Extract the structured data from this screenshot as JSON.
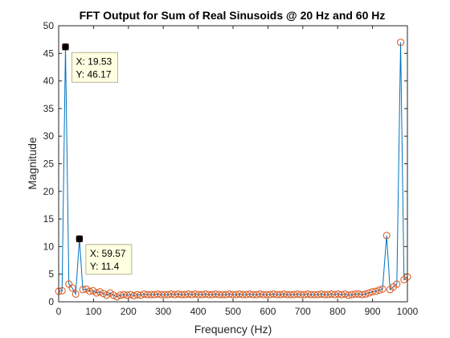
{
  "colors": {
    "line": "#0072BD",
    "marker": "#D95319",
    "datatip_bg": "#FFFFE1",
    "datatip_border": "#B4B496",
    "axes": "#262626"
  },
  "chart_data": {
    "type": "line",
    "title": "FFT Output for Sum of Real Sinusoids @ 20 Hz and 60 Hz",
    "xlabel": "Frequency (Hz)",
    "ylabel": "Magnitude",
    "xlim": [
      0,
      1000
    ],
    "ylim": [
      0,
      50
    ],
    "xticks": [
      "0",
      "100",
      "200",
      "300",
      "400",
      "500",
      "600",
      "700",
      "800",
      "900",
      "1000"
    ],
    "yticks": [
      "0",
      "5",
      "10",
      "15",
      "20",
      "25",
      "30",
      "35",
      "40",
      "45",
      "50"
    ],
    "grid": false,
    "marker": "circle",
    "series": [
      {
        "x": [
          0,
          9.77,
          19.53,
          29.3,
          39.06,
          48.83,
          59.57,
          69.34,
          79.1,
          88.87,
          98.63,
          108.4,
          118.2,
          127.9,
          137.7,
          147.5,
          157.2,
          167,
          176.8,
          186.5,
          196.3,
          206.1,
          215.8,
          225.6,
          235.4,
          245.1,
          254.9,
          264.6,
          274.4,
          284.2,
          293.9,
          303.7,
          313.5,
          323.2,
          333,
          342.8,
          352.5,
          362.3,
          372.1,
          381.8,
          391.6,
          401.4,
          411.1,
          420.9,
          430.7,
          440.4,
          450.2,
          459.9,
          469.7,
          479.5,
          489.3,
          499,
          508.8,
          518.6,
          528.3,
          538.1,
          547.9,
          557.6,
          567.4,
          577.1,
          586.9,
          596.7,
          606.4,
          616.2,
          626,
          635.7,
          645.5,
          655.3,
          665,
          674.8,
          684.6,
          694.3,
          704.1,
          713.9,
          723.6,
          733.4,
          743.2,
          752.9,
          762.7,
          772.5,
          782.2,
          792,
          801.8,
          811.5,
          821.3,
          831.1,
          840.8,
          850.6,
          860.4,
          870.1,
          879.9,
          889.6,
          899.4,
          909.2,
          918.9,
          928.7,
          940.4,
          950.2,
          959.9,
          969.7,
          980.5,
          990.2,
          1000
        ],
        "y": [
          1.9,
          2.0,
          46.17,
          3.2,
          2.5,
          1.4,
          11.4,
          2.2,
          2.3,
          1.9,
          2.0,
          1.6,
          1.8,
          1.5,
          1.2,
          1.6,
          1.2,
          0.9,
          1.2,
          1.3,
          1.2,
          1.3,
          1.1,
          1.3,
          1.2,
          1.4,
          1.3,
          1.3,
          1.3,
          1.4,
          1.3,
          1.3,
          1.3,
          1.4,
          1.3,
          1.4,
          1.3,
          1.3,
          1.4,
          1.3,
          1.4,
          1.3,
          1.3,
          1.4,
          1.3,
          1.3,
          1.4,
          1.3,
          1.3,
          1.3,
          1.4,
          1.3,
          1.3,
          1.4,
          1.3,
          1.3,
          1.4,
          1.3,
          1.3,
          1.4,
          1.3,
          1.3,
          1.3,
          1.4,
          1.3,
          1.3,
          1.4,
          1.3,
          1.3,
          1.3,
          1.4,
          1.3,
          1.3,
          1.4,
          1.3,
          1.3,
          1.3,
          1.4,
          1.3,
          1.3,
          1.4,
          1.3,
          1.4,
          1.3,
          1.4,
          1.2,
          1.3,
          1.4,
          1.4,
          1.3,
          1.4,
          1.6,
          1.8,
          1.9,
          2.1,
          2.3,
          12.0,
          2.2,
          2.7,
          3.2,
          47.0,
          4.0,
          4.5
        ]
      }
    ],
    "datatips": [
      {
        "x_text": "X: 19.53",
        "y_text": "Y: 46.17",
        "x": 19.53,
        "y": 46.17
      },
      {
        "x_text": "X: 59.57",
        "y_text": "Y: 11.4",
        "x": 59.57,
        "y": 11.4
      }
    ]
  }
}
